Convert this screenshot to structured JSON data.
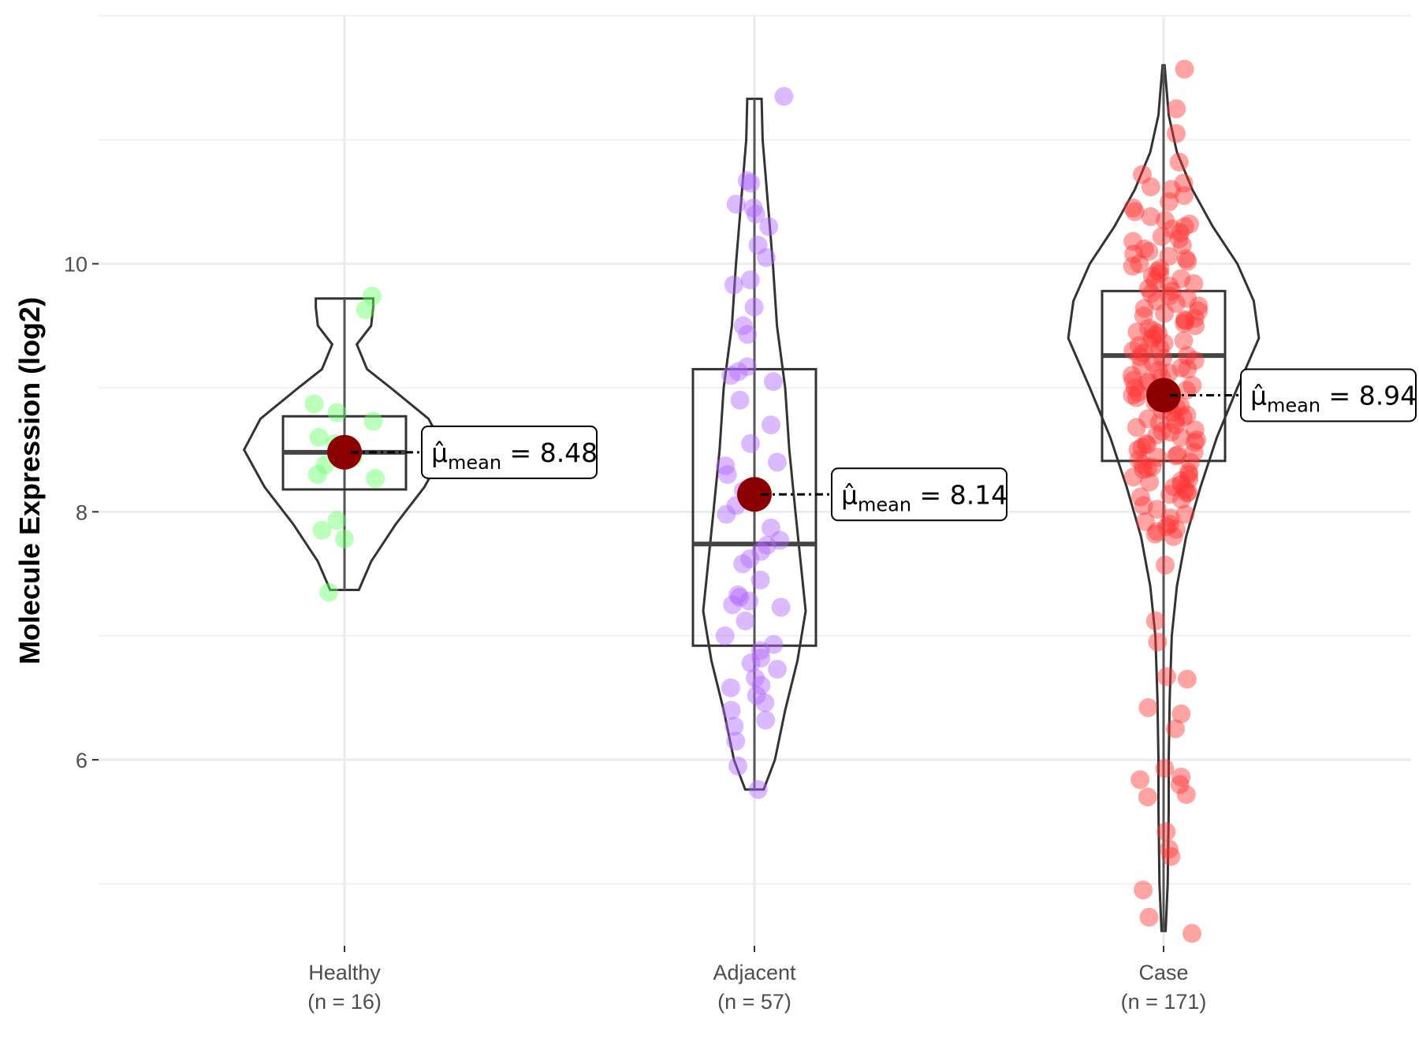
{
  "chart_data": {
    "type": "violin-box-jitter",
    "ylabel": "Molecule Expression (log2)",
    "xlabel": "",
    "ylim": [
      4.5,
      12.0
    ],
    "yticks": [
      6,
      8,
      10
    ],
    "ytick_labels": [
      "6",
      "8",
      "10"
    ],
    "grid": true,
    "mean_symbol": "μ̂",
    "mean_subscript": "mean",
    "mean_color": "#8b0000",
    "groups": [
      {
        "name": "Healthy",
        "n_label": "(n = 16)",
        "color": "#66ff66",
        "mean": 8.48,
        "mean_label": "8.48",
        "box": {
          "q1": 8.18,
          "median": 8.48,
          "q3": 8.77
        },
        "whiskers": [
          7.37,
          9.72
        ],
        "violin": {
          "min": 7.37,
          "max": 9.72,
          "profile": [
            [
              7.37,
              0.14
            ],
            [
              7.6,
              0.26
            ],
            [
              7.9,
              0.5
            ],
            [
              8.2,
              0.78
            ],
            [
              8.5,
              0.98
            ],
            [
              8.75,
              0.82
            ],
            [
              9.0,
              0.45
            ],
            [
              9.15,
              0.22
            ],
            [
              9.35,
              0.12
            ],
            [
              9.5,
              0.26
            ],
            [
              9.65,
              0.28
            ],
            [
              9.72,
              0.28
            ]
          ]
        },
        "points": [
          9.74,
          9.63,
          8.87,
          8.8,
          8.73,
          8.6,
          8.55,
          8.5,
          8.44,
          8.38,
          8.3,
          8.27,
          7.93,
          7.85,
          7.78,
          7.35
        ]
      },
      {
        "name": "Adjacent",
        "n_label": "(n = 57)",
        "color": "#b266ff",
        "mean": 8.14,
        "mean_label": "8.14",
        "box": {
          "q1": 6.92,
          "median": 7.74,
          "q3": 9.15
        },
        "whiskers": [
          5.76,
          11.33
        ],
        "violin": {
          "min": 5.76,
          "max": 11.33,
          "profile": [
            [
              5.76,
              0.09
            ],
            [
              6.0,
              0.2
            ],
            [
              6.4,
              0.3
            ],
            [
              6.8,
              0.42
            ],
            [
              7.2,
              0.5
            ],
            [
              7.6,
              0.45
            ],
            [
              8.0,
              0.4
            ],
            [
              8.5,
              0.34
            ],
            [
              9.0,
              0.3
            ],
            [
              9.5,
              0.22
            ],
            [
              10.0,
              0.18
            ],
            [
              10.5,
              0.13
            ],
            [
              11.0,
              0.08
            ],
            [
              11.33,
              0.07
            ]
          ]
        },
        "points": [
          11.35,
          10.67,
          10.65,
          10.48,
          10.45,
          10.4,
          10.3,
          10.15,
          10.05,
          9.87,
          9.83,
          9.65,
          9.43,
          9.17,
          9.13,
          9.1,
          9.05,
          8.9,
          8.4,
          8.37,
          8.3,
          8.17,
          8.05,
          7.98,
          7.87,
          7.77,
          7.73,
          7.68,
          7.62,
          7.58,
          7.33,
          7.31,
          7.28,
          7.25,
          7.23,
          7.12,
          6.93,
          6.88,
          6.82,
          6.78,
          6.73,
          6.66,
          6.6,
          6.58,
          6.52,
          6.46,
          6.32,
          6.27,
          6.15,
          5.95,
          5.76,
          9.5,
          8.7,
          8.55,
          7.45,
          7.0,
          6.4
        ]
      },
      {
        "name": "Case",
        "n_label": "(n = 171)",
        "color": "#ff3333",
        "mean": 8.94,
        "mean_label": "8.94",
        "box": {
          "q1": 8.41,
          "median": 9.26,
          "q3": 9.78
        },
        "whiskers": [
          4.62,
          11.6
        ],
        "violin": {
          "min": 4.62,
          "max": 11.6,
          "profile": [
            [
              4.62,
              0.02
            ],
            [
              5.0,
              0.04
            ],
            [
              5.6,
              0.05
            ],
            [
              6.0,
              0.05
            ],
            [
              6.5,
              0.06
            ],
            [
              7.0,
              0.08
            ],
            [
              7.4,
              0.13
            ],
            [
              7.8,
              0.22
            ],
            [
              8.2,
              0.36
            ],
            [
              8.6,
              0.52
            ],
            [
              9.0,
              0.72
            ],
            [
              9.4,
              0.93
            ],
            [
              9.7,
              0.88
            ],
            [
              10.0,
              0.72
            ],
            [
              10.3,
              0.48
            ],
            [
              10.6,
              0.28
            ],
            [
              10.9,
              0.13
            ],
            [
              11.2,
              0.05
            ],
            [
              11.6,
              0.01
            ]
          ]
        },
        "points": [
          11.57,
          11.25,
          11.05,
          10.82,
          10.72,
          10.65,
          10.62,
          10.6,
          10.55,
          10.5,
          10.45,
          10.42,
          10.38,
          10.35,
          10.32,
          10.3,
          10.28,
          10.25,
          10.22,
          10.2,
          10.18,
          10.15,
          10.12,
          10.1,
          10.08,
          10.06,
          10.04,
          10.02,
          10.0,
          9.98,
          9.96,
          9.94,
          9.92,
          9.9,
          9.88,
          9.86,
          9.84,
          9.82,
          9.8,
          9.78,
          9.76,
          9.74,
          9.72,
          9.7,
          9.68,
          9.66,
          9.64,
          9.62,
          9.6,
          9.58,
          9.56,
          9.54,
          9.52,
          9.5,
          9.48,
          9.46,
          9.44,
          9.42,
          9.4,
          9.38,
          9.36,
          9.34,
          9.32,
          9.3,
          9.28,
          9.26,
          9.24,
          9.22,
          9.2,
          9.18,
          9.16,
          9.14,
          9.12,
          9.1,
          9.08,
          9.06,
          9.04,
          9.02,
          9.0,
          8.98,
          8.96,
          8.94,
          8.92,
          8.9,
          8.88,
          8.86,
          8.84,
          8.82,
          8.8,
          8.78,
          8.76,
          8.74,
          8.72,
          8.7,
          8.68,
          8.66,
          8.64,
          8.62,
          8.6,
          8.58,
          8.56,
          8.54,
          8.52,
          8.5,
          8.48,
          8.46,
          8.44,
          8.42,
          8.4,
          8.38,
          8.36,
          8.34,
          8.32,
          8.3,
          8.28,
          8.26,
          8.24,
          8.22,
          8.2,
          8.18,
          8.16,
          8.14,
          8.12,
          8.1,
          8.05,
          8.02,
          7.98,
          7.95,
          7.92,
          7.9,
          7.88,
          7.86,
          7.84,
          7.82,
          7.8,
          7.57,
          7.12,
          6.95,
          6.67,
          6.65,
          6.42,
          6.37,
          6.25,
          5.93,
          5.86,
          5.84,
          5.8,
          5.72,
          5.7,
          5.42,
          5.28,
          5.22,
          4.95,
          4.73,
          4.6,
          9.55,
          9.45,
          9.35,
          9.25,
          9.15,
          9.05,
          8.95,
          8.85,
          8.75,
          8.65,
          8.55,
          8.45,
          8.35,
          8.25,
          8.15
        ]
      }
    ]
  }
}
